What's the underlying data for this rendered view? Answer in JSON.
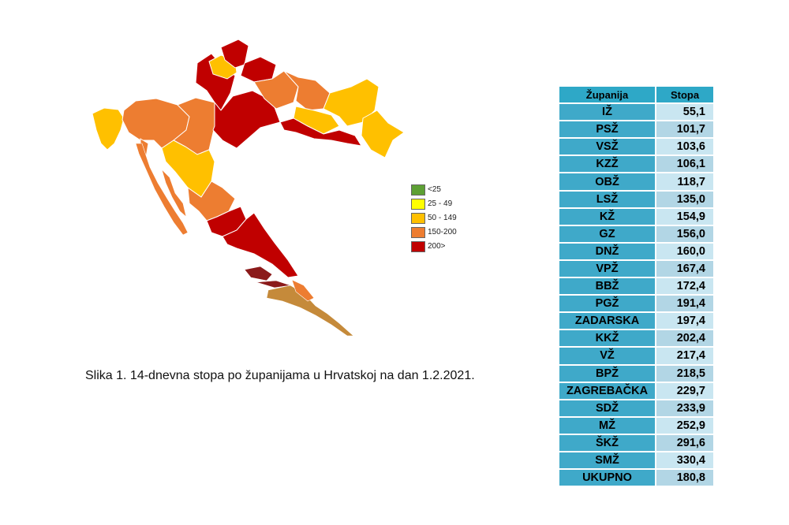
{
  "map": {
    "legend": [
      {
        "label": "<25",
        "color": "#5da034"
      },
      {
        "label": "25 - 49",
        "color": "#ffff00"
      },
      {
        "label": "50 - 149",
        "color": "#ffc000"
      },
      {
        "label": "150-200",
        "color": "#ed7d31"
      },
      {
        "label": "200>",
        "color": "#c00000"
      }
    ]
  },
  "caption": "Slika 1. 14-dnevna stopa po županijama u Hrvatskoj na dan 1.2.2021.",
  "table": {
    "headers": {
      "county": "Županija",
      "rate": "Stopa"
    },
    "rows": [
      {
        "county": "IŽ",
        "rate": "55,1"
      },
      {
        "county": "PSŽ",
        "rate": "101,7"
      },
      {
        "county": "VSŽ",
        "rate": "103,6"
      },
      {
        "county": "KZŽ",
        "rate": "106,1"
      },
      {
        "county": "OBŽ",
        "rate": "118,7"
      },
      {
        "county": "LSŽ",
        "rate": "135,0"
      },
      {
        "county": "KŽ",
        "rate": "154,9"
      },
      {
        "county": "GZ",
        "rate": "156,0"
      },
      {
        "county": "DNŽ",
        "rate": "160,0"
      },
      {
        "county": "VPŽ",
        "rate": "167,4"
      },
      {
        "county": "BBŽ",
        "rate": "172,4"
      },
      {
        "county": "PGŽ",
        "rate": "191,4"
      },
      {
        "county": "ZADARSKA",
        "rate": "197,4"
      },
      {
        "county": "KKŽ",
        "rate": "202,4"
      },
      {
        "county": "VŽ",
        "rate": "217,4"
      },
      {
        "county": "BPŽ",
        "rate": "218,5"
      },
      {
        "county": "ZAGREBAČKA",
        "rate": "229,7"
      },
      {
        "county": "SDŽ",
        "rate": "233,9"
      },
      {
        "county": "MŽ",
        "rate": "252,9"
      },
      {
        "county": "ŠKŽ",
        "rate": "291,6"
      },
      {
        "county": "SMŽ",
        "rate": "330,4"
      },
      {
        "county": "UKUPNO",
        "rate": "180,8"
      }
    ]
  }
}
